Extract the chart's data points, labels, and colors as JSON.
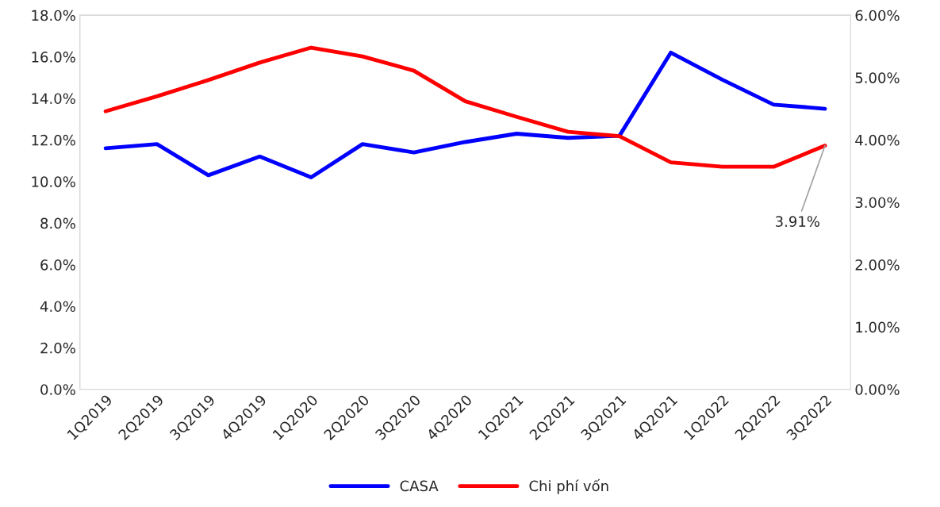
{
  "chart_data": {
    "type": "line",
    "categories": [
      "1Q2019",
      "2Q2019",
      "3Q2019",
      "4Q2019",
      "1Q2020",
      "2Q2020",
      "3Q2020",
      "4Q2020",
      "1Q2021",
      "2Q2021",
      "3Q2021",
      "4Q2021",
      "1Q2022",
      "2Q2022",
      "3Q2022"
    ],
    "series": [
      {
        "name": "CASA",
        "color": "#0000ff",
        "values": [
          11.6,
          11.8,
          10.3,
          11.2,
          10.2,
          11.8,
          11.4,
          11.9,
          12.3,
          12.1,
          12.2,
          16.2,
          14.9,
          13.7,
          13.5
        ]
      },
      {
        "name": "Chi phí vốn",
        "color": "#ff0000",
        "axis": "y2",
        "values": [
          4.46,
          4.7,
          4.96,
          5.24,
          5.48,
          5.34,
          5.11,
          4.62,
          4.37,
          4.13,
          4.06,
          3.64,
          3.57,
          3.57,
          3.91
        ],
        "value_labels": [
          null,
          null,
          null,
          null,
          null,
          null,
          null,
          null,
          null,
          null,
          null,
          null,
          null,
          null,
          "3.91%"
        ]
      }
    ],
    "ylim": [
      0,
      18
    ],
    "yticks": [
      {
        "value": 0,
        "label": "0.0%"
      },
      {
        "value": 2,
        "label": "2.0%"
      },
      {
        "value": 4,
        "label": "4.0%"
      },
      {
        "value": 6,
        "label": "6.0%"
      },
      {
        "value": 8,
        "label": "8.0%"
      },
      {
        "value": 10,
        "label": "10.0%"
      },
      {
        "value": 12,
        "label": "12.0%"
      },
      {
        "value": 14,
        "label": "14.0%"
      },
      {
        "value": 16,
        "label": "16.0%"
      },
      {
        "value": 18,
        "label": "18.0%"
      }
    ],
    "y2lim": [
      0,
      6
    ],
    "y2ticks": [
      {
        "value": 0,
        "label": "0.00%"
      },
      {
        "value": 1,
        "label": "1.00%"
      },
      {
        "value": 2,
        "label": "2.00%"
      },
      {
        "value": 3,
        "label": "3.00%"
      },
      {
        "value": 4,
        "label": "4.00%"
      },
      {
        "value": 5,
        "label": "5.00%"
      },
      {
        "value": 6,
        "label": "6.00%"
      }
    ],
    "grid": false,
    "legend": "bottom",
    "marker": "none",
    "line_style": "solid"
  }
}
